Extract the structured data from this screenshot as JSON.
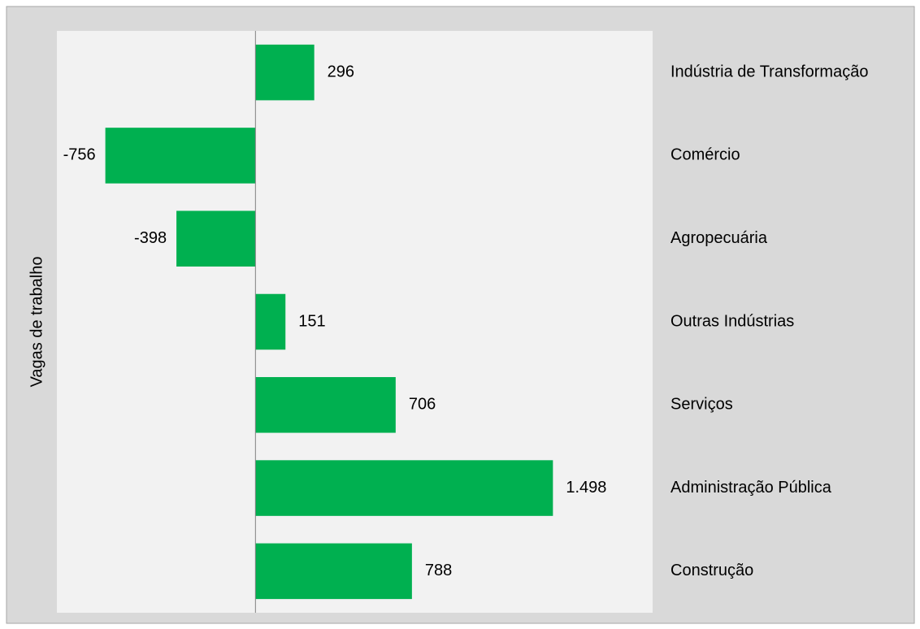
{
  "chart_data": {
    "type": "barh",
    "ylabel": "Vagas de trabalho",
    "categories": [
      "Indústria de Transformação",
      "Comércio",
      "Agropecuária",
      "Outras Indústrias",
      "Serviços",
      "Administração Pública",
      "Construção"
    ],
    "values": [
      296,
      -756,
      -398,
      151,
      706,
      1498,
      788
    ],
    "value_labels": [
      "296",
      "-756",
      "-398",
      "151",
      "706",
      "1.498",
      "788"
    ],
    "color": "#00b050",
    "xlim": [
      -1000,
      2000
    ]
  }
}
